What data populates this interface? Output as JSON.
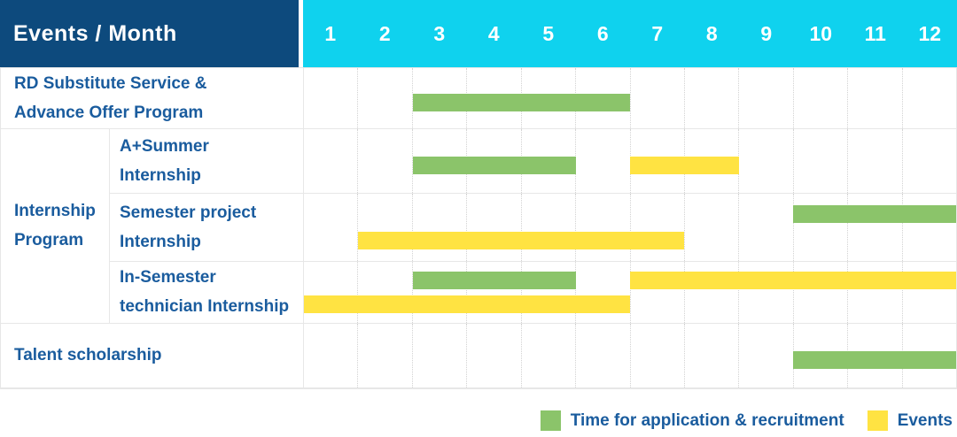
{
  "palette": {
    "header_bg": "#0d4a7d",
    "months_bg": "#0fd2ee",
    "recruitment_green": "#8bc46a",
    "events_yellow": "#ffe342",
    "label_text": "#1a5c9e",
    "grid_line": "#e7e7e7"
  },
  "chart_data": {
    "type": "gantt",
    "title": "Events / Month",
    "x": {
      "label": "Month",
      "ticks": [
        "1",
        "2",
        "3",
        "4",
        "5",
        "6",
        "7",
        "8",
        "9",
        "10",
        "11",
        "12"
      ],
      "range": [
        1,
        12
      ]
    },
    "legend": [
      {
        "key": "recruitment",
        "label": "Time for application & recruitment",
        "color": "#8bc46a"
      },
      {
        "key": "events",
        "label": "Events",
        "color": "#ffe342"
      }
    ],
    "groups": [
      {
        "label": "Internship Program",
        "label_lines": [
          "Internship",
          "Program"
        ],
        "first_row": 1,
        "last_row": 3
      }
    ],
    "rows": [
      {
        "label": "RD Substitute Service & Advance Offer Program",
        "label_lines": [
          "RD Substitute Service &",
          "Advance Offer Program"
        ],
        "group": "",
        "bars": [
          {
            "series": "recruitment",
            "start_month": 3,
            "end_month": 6,
            "lane": "center"
          }
        ]
      },
      {
        "label": "A+Summer Internship",
        "label_lines": [
          "A+Summer",
          "Internship"
        ],
        "group": "Internship Program",
        "bars": [
          {
            "series": "recruitment",
            "start_month": 3,
            "end_month": 5,
            "lane": "center"
          },
          {
            "series": "events",
            "start_month": 7,
            "end_month": 8,
            "lane": "center"
          }
        ]
      },
      {
        "label": "Semester project Internship",
        "label_lines": [
          "Semester project",
          "Internship"
        ],
        "group": "Internship Program",
        "bars": [
          {
            "series": "recruitment",
            "start_month": 10,
            "end_month": 12,
            "lane": "upper"
          },
          {
            "series": "events",
            "start_month": 2,
            "end_month": 7,
            "lane": "lower"
          }
        ]
      },
      {
        "label": "In-Semester technician Internship",
        "label_lines": [
          "In-Semester",
          "technician Internship"
        ],
        "group": "Internship Program",
        "bars": [
          {
            "series": "recruitment",
            "start_month": 3,
            "end_month": 5,
            "lane": "upper"
          },
          {
            "series": "events",
            "start_month": 7,
            "end_month": 12,
            "lane": "upper"
          },
          {
            "series": "events",
            "start_month": 1,
            "end_month": 6,
            "lane": "lower"
          }
        ]
      },
      {
        "label": "Talent scholarship",
        "label_lines": [
          "Talent scholarship"
        ],
        "group": "",
        "bars": [
          {
            "series": "recruitment",
            "start_month": 10,
            "end_month": 12,
            "lane": "center"
          }
        ]
      }
    ]
  }
}
